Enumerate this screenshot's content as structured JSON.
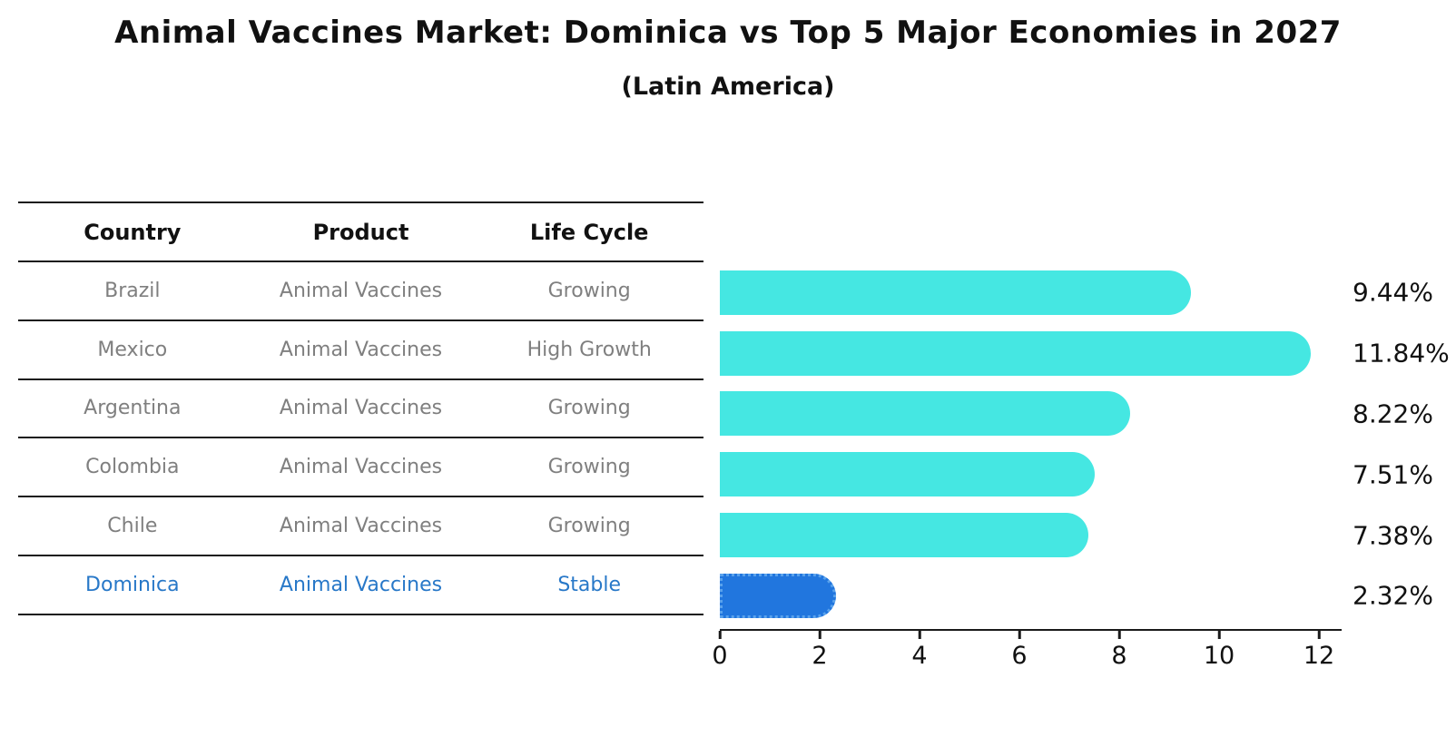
{
  "title": "Animal Vaccines Market: Dominica vs Top 5 Major Economies in 2027",
  "subtitle": "(Latin America)",
  "table": {
    "headers": [
      "Country",
      "Product",
      "Life Cycle"
    ],
    "highlight_row_index": 5,
    "rows": [
      {
        "country": "Brazil",
        "product": "Animal Vaccines",
        "life_cycle": "Growing"
      },
      {
        "country": "Mexico",
        "product": "Animal Vaccines",
        "life_cycle": "High Growth"
      },
      {
        "country": "Argentina",
        "product": "Animal Vaccines",
        "life_cycle": "Growing"
      },
      {
        "country": "Colombia",
        "product": "Animal Vaccines",
        "life_cycle": "Growing"
      },
      {
        "country": "Chile",
        "product": "Animal Vaccines",
        "life_cycle": "Growing"
      },
      {
        "country": "Dominica",
        "product": "Animal Vaccines",
        "life_cycle": "Stable"
      }
    ]
  },
  "chart_data": {
    "type": "bar",
    "orientation": "horizontal",
    "title": "Animal Vaccines Market: Dominica vs Top 5 Major Economies in 2027",
    "subtitle": "(Latin America)",
    "categories": [
      "Brazil",
      "Mexico",
      "Argentina",
      "Colombia",
      "Chile",
      "Dominica"
    ],
    "values": [
      9.44,
      11.84,
      8.22,
      7.51,
      7.38,
      2.32
    ],
    "value_labels": [
      "9.44%",
      "11.84%",
      "8.22%",
      "7.51%",
      "7.38%",
      "2.32%"
    ],
    "xlabel": "",
    "ylabel": "",
    "xlim": [
      0,
      12.45
    ],
    "x_ticks": [
      0,
      2,
      4,
      6,
      8,
      10,
      12
    ],
    "grid": false,
    "legend": null,
    "highlight_index": 5,
    "bar_color": "#45E7E2",
    "highlight_color": "#2176DE",
    "highlight_border_color": "#5AA2EC",
    "highlight_text_color": "#2878C8"
  }
}
